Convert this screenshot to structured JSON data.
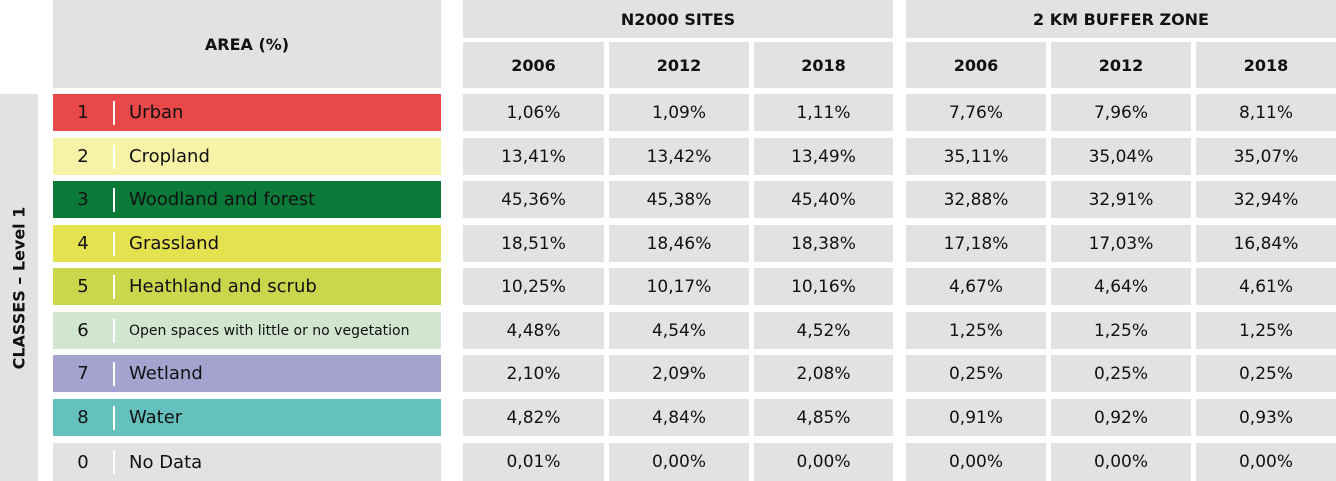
{
  "header": {
    "area_label": "AREA (%)",
    "groups": [
      "N2000 SITES",
      "2 KM BUFFER ZONE"
    ],
    "years": [
      "2006",
      "2012",
      "2018"
    ]
  },
  "side_label": "CLASSES – Level 1",
  "rows": [
    {
      "code": "1",
      "label": "Urban",
      "color": "#e94848",
      "values": [
        "1,06%",
        "1,09%",
        "1,11%",
        "7,76%",
        "7,96%",
        "8,11%"
      ]
    },
    {
      "code": "2",
      "label": "Cropland",
      "color": "#f7f3a6",
      "values": [
        "13,41%",
        "13,42%",
        "13,49%",
        "35,11%",
        "35,04%",
        "35,07%"
      ]
    },
    {
      "code": "3",
      "label": "Woodland and forest",
      "color": "#0b7a38",
      "values": [
        "45,36%",
        "45,38%",
        "45,40%",
        "32,88%",
        "32,91%",
        "32,94%"
      ]
    },
    {
      "code": "4",
      "label": "Grassland",
      "color": "#e5e250",
      "values": [
        "18,51%",
        "18,46%",
        "18,38%",
        "17,18%",
        "17,03%",
        "16,84%"
      ]
    },
    {
      "code": "5",
      "label": "Heathland and scrub",
      "color": "#cad64c",
      "values": [
        "10,25%",
        "10,17%",
        "10,16%",
        "4,67%",
        "4,64%",
        "4,61%"
      ]
    },
    {
      "code": "6",
      "label": "Open spaces with little or no vegetation",
      "color": "#d0e6cf",
      "values": [
        "4,48%",
        "4,54%",
        "4,52%",
        "1,25%",
        "1,25%",
        "1,25%"
      ]
    },
    {
      "code": "7",
      "label": "Wetland",
      "color": "#a4a3d0",
      "values": [
        "2,10%",
        "2,09%",
        "2,08%",
        "0,25%",
        "0,25%",
        "0,25%"
      ]
    },
    {
      "code": "8",
      "label": "Water",
      "color": "#65c1be",
      "values": [
        "4,82%",
        "4,84%",
        "4,85%",
        "0,91%",
        "0,92%",
        "0,93%"
      ]
    },
    {
      "code": "0",
      "label": "No Data",
      "color": "#e2e2e2",
      "values": [
        "0,01%",
        "0,00%",
        "0,00%",
        "0,00%",
        "0,00%",
        "0,00%"
      ]
    }
  ]
}
